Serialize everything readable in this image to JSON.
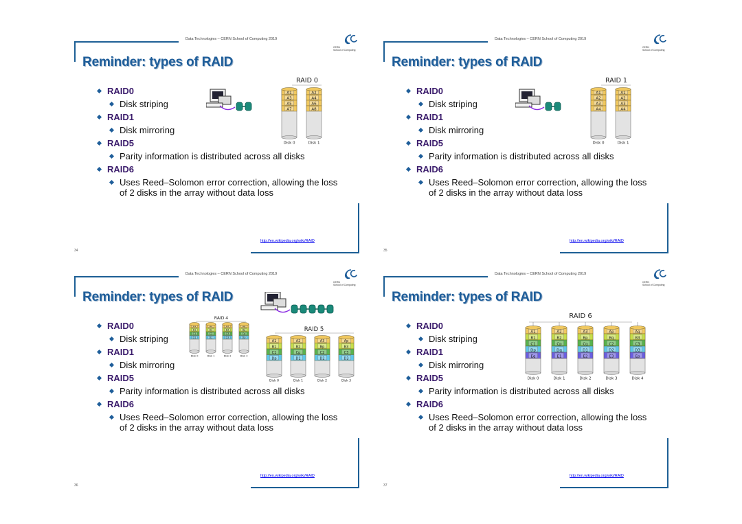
{
  "colors": {
    "frame": "#1d5f95",
    "title": "#1f5e9a",
    "level1": "#3a1b6b",
    "link": "#0000ee",
    "disk_body": "#e3e3e3",
    "bands": [
      "#f0c860",
      "#c6dd4a",
      "#58b34e",
      "#5fc7ea",
      "#6a5ee0"
    ]
  },
  "slides": [
    {
      "header": "Data Technologies – CERN School of Computing 2019",
      "logo": {
        "line1": "CERN",
        "line2": "School of Computing"
      },
      "title": "Reminder: types of RAID",
      "bullets": {
        "raid0": "RAID0",
        "raid0_sub": "Disk striping",
        "raid1": "RAID1",
        "raid1_sub": "Disk mirroring",
        "raid5": "RAID5",
        "raid5_sub": "Parity information is distributed across all disks",
        "raid6": "RAID6",
        "raid6_sub": "Uses Reed–Solomon error correction, allowing the loss of 2 disks in the array without data loss"
      },
      "page_number": "34",
      "link": "http://en.wikipedia.org/wiki/RAID",
      "diagram": {
        "label": "RAID 0",
        "disks": [
          "Disk 0",
          "Disk 1"
        ],
        "cells": [
          [
            "A1",
            "A3",
            "A5",
            "A7"
          ],
          [
            "A2",
            "A4",
            "A6",
            "A8"
          ]
        ]
      }
    },
    {
      "header": "Data Technologies – CERN School of Computing 2019",
      "logo": {
        "line1": "CERN",
        "line2": "School of Computing"
      },
      "title": "Reminder: types of RAID",
      "bullets": {
        "raid0": "RAID0",
        "raid0_sub": "Disk striping",
        "raid1": "RAID1",
        "raid1_sub": "Disk mirroring",
        "raid5": "RAID5",
        "raid5_sub": "Parity information is distributed across all disks",
        "raid6": "RAID6",
        "raid6_sub": "Uses Reed–Solomon error correction, allowing the loss of 2 disks in the array without data loss"
      },
      "page_number": "35",
      "link": "http://en.wikipedia.org/wiki/RAID",
      "diagram": {
        "label": "RAID 1",
        "disks": [
          "Disk 0",
          "Disk 1"
        ],
        "cells": [
          [
            "A1",
            "A2",
            "A3",
            "A4"
          ],
          [
            "A1",
            "A2",
            "A3",
            "A4"
          ]
        ]
      }
    },
    {
      "header": "Data Technologies – CERN School of Computing 2019",
      "logo": {
        "line1": "CERN",
        "line2": "School of Computing"
      },
      "title": "Reminder: types of RAID",
      "bullets": {
        "raid0": "RAID0",
        "raid0_sub": "Disk striping",
        "raid1": "RAID1",
        "raid1_sub": "Disk mirroring",
        "raid5": "RAID5",
        "raid5_sub": "Parity information is distributed across all disks",
        "raid6": "RAID6",
        "raid6_sub": "Uses Reed–Solomon error correction, allowing the loss of 2 disks in the array without data loss"
      },
      "page_number": "36",
      "link": "http://en.wikipedia.org/wiki/RAID",
      "diagram_raid4": {
        "label": "RAID 4",
        "disks": [
          "Disk 0",
          "Disk 1",
          "Disk 2",
          "Disk 3"
        ],
        "cells": [
          [
            "A1",
            "B1",
            "C1",
            "D1"
          ],
          [
            "A2",
            "B2",
            "C2",
            "D2"
          ],
          [
            "A3",
            "B3",
            "C3",
            "D3"
          ],
          [
            "Ap",
            "Bp",
            "Cp",
            "Dp"
          ]
        ]
      },
      "diagram_raid5": {
        "label": "RAID 5",
        "disks": [
          "Disk 0",
          "Disk 1",
          "Disk 2",
          "Disk 3"
        ],
        "cells": [
          [
            "A1",
            "B1",
            "C1",
            "Dp"
          ],
          [
            "A2",
            "B2",
            "Cp",
            "D1"
          ],
          [
            "A3",
            "Bp",
            "C2",
            "D2"
          ],
          [
            "Ap",
            "B3",
            "C3",
            "D3"
          ]
        ]
      }
    },
    {
      "header": "Data Technologies – CERN School of Computing 2019",
      "logo": {
        "line1": "CERN",
        "line2": "School of Computing"
      },
      "title": "Reminder: types of RAID",
      "bullets": {
        "raid0": "RAID0",
        "raid0_sub": "Disk striping",
        "raid1": "RAID1",
        "raid1_sub": "Disk mirroring",
        "raid5": "RAID5",
        "raid5_sub": "Parity information is distributed across all disks",
        "raid6": "RAID6",
        "raid6_sub": "Uses Reed–Solomon error correction, allowing the loss of 2 disks in the array without data loss"
      },
      "page_number": "37",
      "link": "http://en.wikipedia.org/wiki/RAID",
      "diagram": {
        "label": "RAID 6",
        "disks": [
          "Disk 0",
          "Disk 1",
          "Disk 2",
          "Disk 3",
          "Disk 4"
        ],
        "cells": [
          [
            "A1",
            "B1",
            "C1",
            "Dp",
            "Eq"
          ],
          [
            "A2",
            "B2",
            "Cp",
            "Dq",
            "E1"
          ],
          [
            "A3",
            "Bp",
            "Cq",
            "D1",
            "E2"
          ],
          [
            "Ap",
            "Bq",
            "C2",
            "D2",
            "E3"
          ],
          [
            "Aq",
            "B3",
            "C3",
            "D3",
            "Ep"
          ]
        ]
      }
    }
  ]
}
